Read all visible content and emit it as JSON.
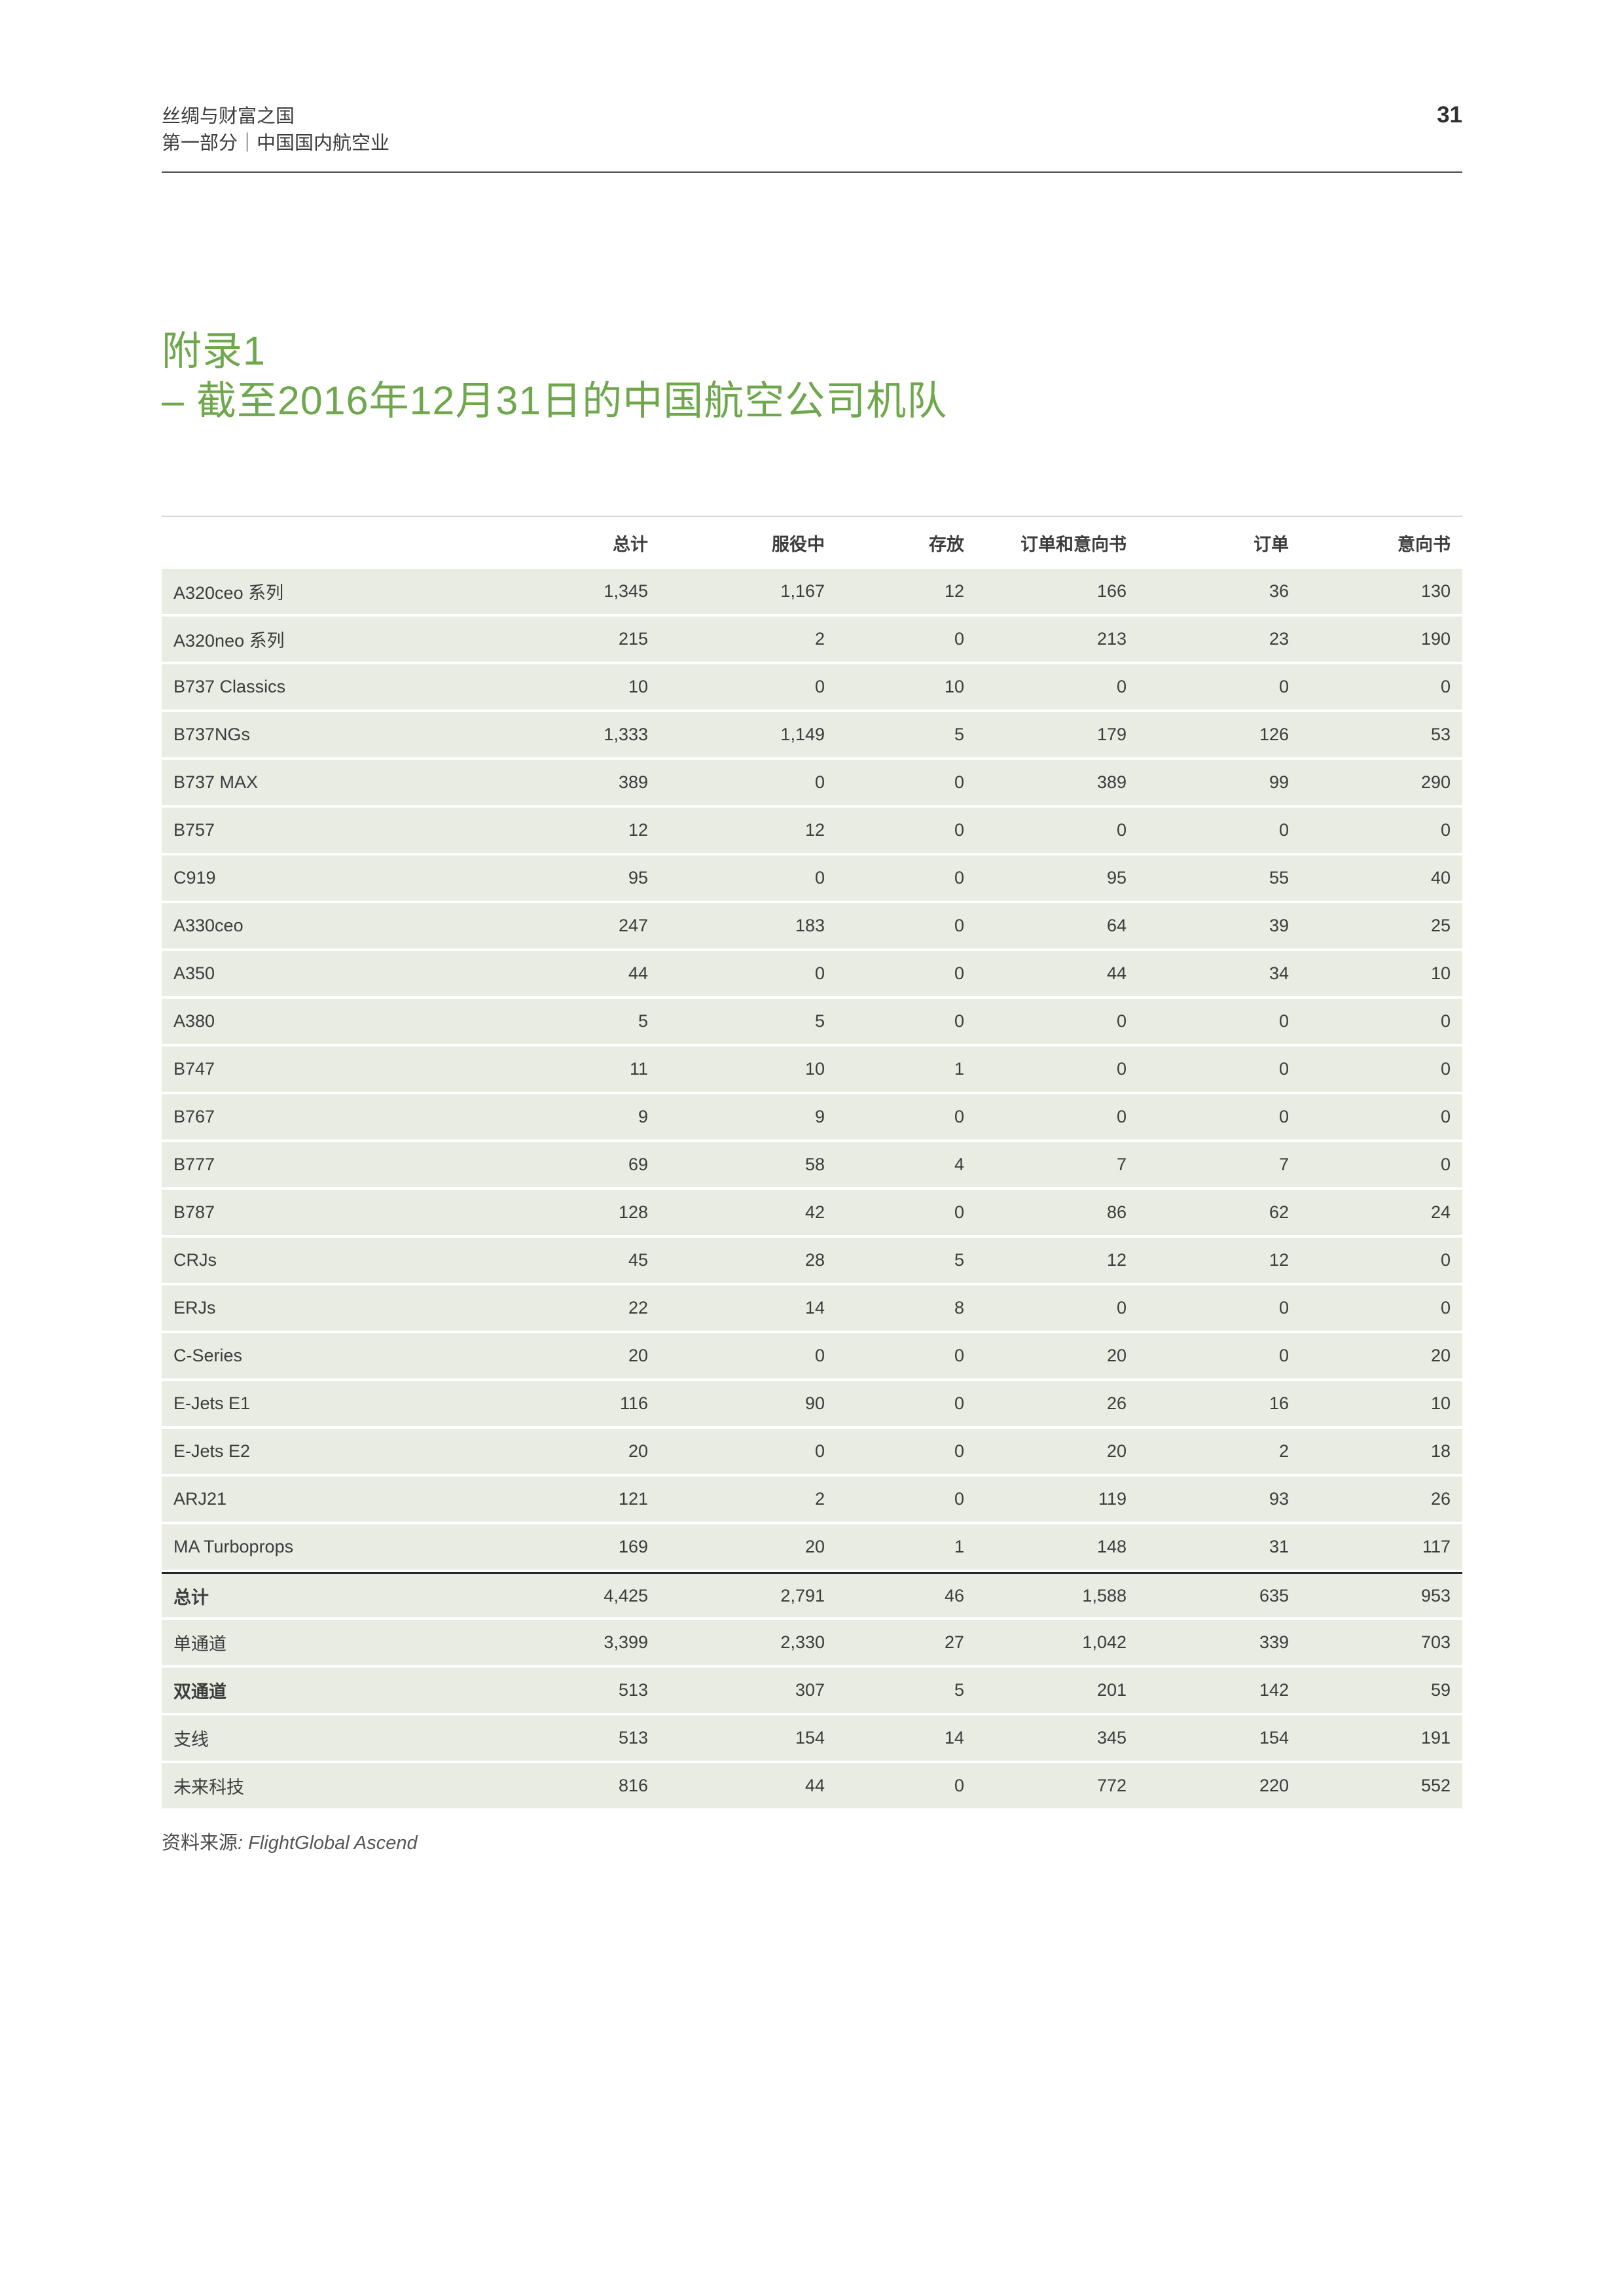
{
  "header": {
    "line1": "丝绸与财富之国",
    "line2": "第一部分｜中国国内航空业",
    "page_number": "31"
  },
  "title": {
    "line1": "附录1",
    "line2": "– 截至2016年12月31日的中国航空公司机队"
  },
  "source": {
    "prefix": "资料来源",
    "name": ": FlightGlobal Ascend"
  },
  "colors": {
    "accent_green": "#6fa84c",
    "row_background": "#e9ece3",
    "rule": "#4a4a4a",
    "text": "#3c3c3c"
  },
  "chart_data": {
    "type": "table",
    "columns": [
      "总计",
      "服役中",
      "存放",
      "订单和意向书",
      "订单",
      "意向书"
    ],
    "rows": [
      {
        "label": "A320ceo 系列",
        "values": [
          "1,345",
          "1,167",
          "12",
          "166",
          "36",
          "130"
        ],
        "bold": false,
        "topline": false
      },
      {
        "label": "A320neo 系列",
        "values": [
          "215",
          "2",
          "0",
          "213",
          "23",
          "190"
        ],
        "bold": false,
        "topline": false
      },
      {
        "label": "B737 Classics",
        "values": [
          "10",
          "0",
          "10",
          "0",
          "0",
          "0"
        ],
        "bold": false,
        "topline": false
      },
      {
        "label": "B737NGs",
        "values": [
          "1,333",
          "1,149",
          "5",
          "179",
          "126",
          "53"
        ],
        "bold": false,
        "topline": false
      },
      {
        "label": "B737 MAX",
        "values": [
          "389",
          "0",
          "0",
          "389",
          "99",
          "290"
        ],
        "bold": false,
        "topline": false
      },
      {
        "label": "B757",
        "values": [
          "12",
          "12",
          "0",
          "0",
          "0",
          "0"
        ],
        "bold": false,
        "topline": false
      },
      {
        "label": "C919",
        "values": [
          "95",
          "0",
          "0",
          "95",
          "55",
          "40"
        ],
        "bold": false,
        "topline": false
      },
      {
        "label": "A330ceo",
        "values": [
          "247",
          "183",
          "0",
          "64",
          "39",
          "25"
        ],
        "bold": false,
        "topline": false
      },
      {
        "label": "A350",
        "values": [
          "44",
          "0",
          "0",
          "44",
          "34",
          "10"
        ],
        "bold": false,
        "topline": false
      },
      {
        "label": "A380",
        "values": [
          "5",
          "5",
          "0",
          "0",
          "0",
          "0"
        ],
        "bold": false,
        "topline": false
      },
      {
        "label": "B747",
        "values": [
          "11",
          "10",
          "1",
          "0",
          "0",
          "0"
        ],
        "bold": false,
        "topline": false
      },
      {
        "label": "B767",
        "values": [
          "9",
          "9",
          "0",
          "0",
          "0",
          "0"
        ],
        "bold": false,
        "topline": false
      },
      {
        "label": "B777",
        "values": [
          "69",
          "58",
          "4",
          "7",
          "7",
          "0"
        ],
        "bold": false,
        "topline": false
      },
      {
        "label": "B787",
        "values": [
          "128",
          "42",
          "0",
          "86",
          "62",
          "24"
        ],
        "bold": false,
        "topline": false
      },
      {
        "label": "CRJs",
        "values": [
          "45",
          "28",
          "5",
          "12",
          "12",
          "0"
        ],
        "bold": false,
        "topline": false
      },
      {
        "label": "ERJs",
        "values": [
          "22",
          "14",
          "8",
          "0",
          "0",
          "0"
        ],
        "bold": false,
        "topline": false
      },
      {
        "label": "C-Series",
        "values": [
          "20",
          "0",
          "0",
          "20",
          "0",
          "20"
        ],
        "bold": false,
        "topline": false
      },
      {
        "label": "E-Jets E1",
        "values": [
          "116",
          "90",
          "0",
          "26",
          "16",
          "10"
        ],
        "bold": false,
        "topline": false
      },
      {
        "label": "E-Jets E2",
        "values": [
          "20",
          "0",
          "0",
          "20",
          "2",
          "18"
        ],
        "bold": false,
        "topline": false
      },
      {
        "label": "ARJ21",
        "values": [
          "121",
          "2",
          "0",
          "119",
          "93",
          "26"
        ],
        "bold": false,
        "topline": false
      },
      {
        "label": "MA Turboprops",
        "values": [
          "169",
          "20",
          "1",
          "148",
          "31",
          "117"
        ],
        "bold": false,
        "topline": false
      },
      {
        "label": "总计",
        "values": [
          "4,425",
          "2,791",
          "46",
          "1,588",
          "635",
          "953"
        ],
        "bold": true,
        "topline": true
      },
      {
        "label": "单通道",
        "values": [
          "3,399",
          "2,330",
          "27",
          "1,042",
          "339",
          "703"
        ],
        "bold": false,
        "topline": false
      },
      {
        "label": "双通道",
        "values": [
          "513",
          "307",
          "5",
          "201",
          "142",
          "59"
        ],
        "bold": true,
        "topline": false
      },
      {
        "label": "支线",
        "values": [
          "513",
          "154",
          "14",
          "345",
          "154",
          "191"
        ],
        "bold": false,
        "topline": false
      },
      {
        "label": "未来科技",
        "values": [
          "816",
          "44",
          "0",
          "772",
          "220",
          "552"
        ],
        "bold": false,
        "topline": false
      }
    ]
  }
}
